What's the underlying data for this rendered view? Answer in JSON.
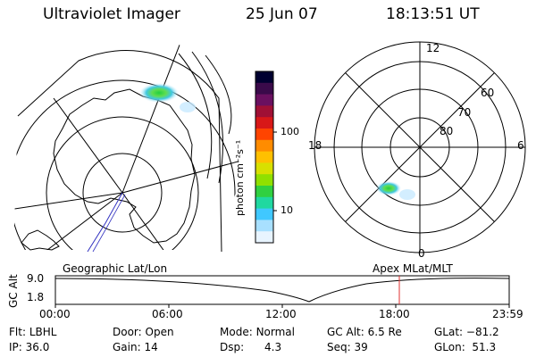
{
  "header": {
    "title": "Ultraviolet Imager",
    "date": "25 Jun 07",
    "time": "18:13:51 UT"
  },
  "colorbar": {
    "label": "photon cm⁻²s⁻¹",
    "ticks": [
      "100",
      "10"
    ],
    "colors": [
      "#000030",
      "#3a0a4a",
      "#6a1060",
      "#a01035",
      "#d81818",
      "#ff4400",
      "#ff8c00",
      "#ffc000",
      "#d8e000",
      "#90e000",
      "#30d040",
      "#20d8a0",
      "#40c8ff",
      "#a8e0ff",
      "#e8f4ff"
    ]
  },
  "polar_plot": {
    "mlt_labels": {
      "top": "12",
      "left": "18",
      "right": "6",
      "bottom": "0"
    },
    "lat_labels": [
      "60",
      "70",
      "80"
    ]
  },
  "timeline": {
    "left_caption": "Geographic Lat/Lon",
    "right_caption": "Apex MLat/MLT",
    "y_axis_label": "GC Alt",
    "y_ticks": [
      "9.0",
      "1.8"
    ],
    "x_ticks": [
      "00:00",
      "06:00",
      "12:00",
      "18:00",
      "23:59"
    ],
    "marker_time": "18:13:51"
  },
  "status": {
    "filter_label": "Flt:",
    "filter_value": "LBHL",
    "ip_label": "IP:",
    "ip_value": "36.0",
    "door_label": "Door:",
    "door_value": "Open",
    "gain_label": "Gain:",
    "gain_value": "14",
    "mode_label": "Mode:",
    "mode_value": "Normal",
    "dsp_label": "Dsp:",
    "dsp_value": "4.3",
    "gcalt_label": "GC Alt:",
    "gcalt_value": "6.5 Re",
    "seq_label": "Seq:",
    "seq_value": "39",
    "glat_label": "GLat:",
    "glat_value": "−81.2",
    "glon_label": "GLon:",
    "glon_value": "51.3"
  }
}
